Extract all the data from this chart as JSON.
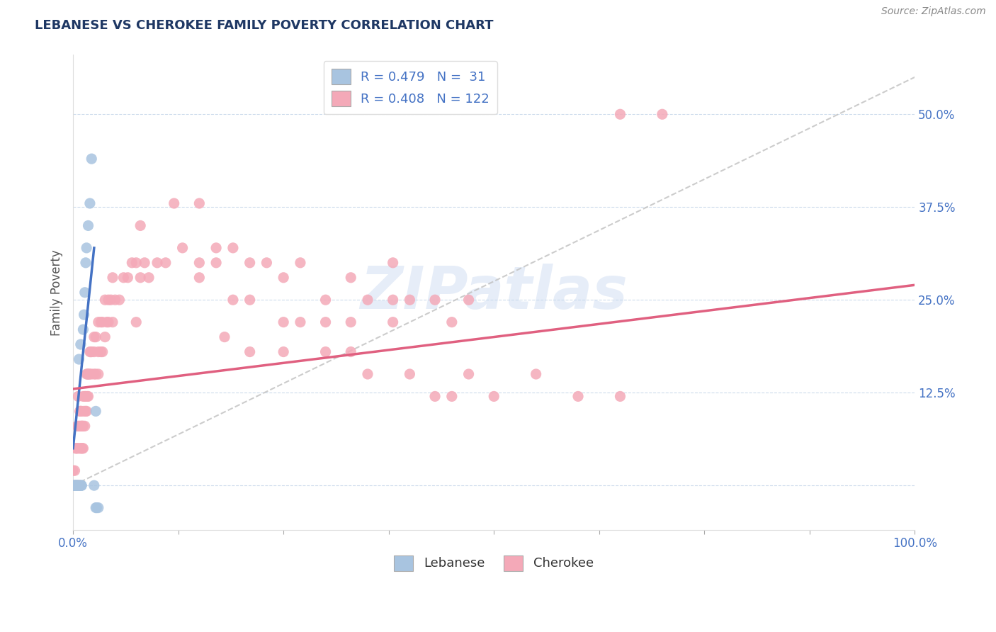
{
  "title": "LEBANESE VS CHEROKEE FAMILY POVERTY CORRELATION CHART",
  "source": "Source: ZipAtlas.com",
  "ylabel": "Family Poverty",
  "xlim": [
    0,
    1.0
  ],
  "ylim": [
    -0.06,
    0.58
  ],
  "xticks": [
    0.0,
    0.125,
    0.25,
    0.375,
    0.5,
    0.625,
    0.75,
    0.875,
    1.0
  ],
  "ytick_positions": [
    0.0,
    0.125,
    0.25,
    0.375,
    0.5
  ],
  "yticklabels": [
    "",
    "12.5%",
    "25.0%",
    "37.5%",
    "50.0%"
  ],
  "lebanese_R": 0.479,
  "lebanese_N": 31,
  "cherokee_R": 0.408,
  "cherokee_N": 122,
  "lebanese_color": "#a8c4e0",
  "cherokee_color": "#f4a9b8",
  "lebanese_line_color": "#4472c4",
  "cherokee_line_color": "#e06080",
  "diagonal_color": "#c0c0c0",
  "watermark": "ZIPatlas",
  "title_color": "#1f3864",
  "axis_label_color": "#555555",
  "tick_label_color": "#4472c4",
  "lebanese_scatter": [
    [
      0.0,
      0.0
    ],
    [
      0.0,
      0.0
    ],
    [
      0.002,
      0.0
    ],
    [
      0.002,
      0.0
    ],
    [
      0.003,
      0.0
    ],
    [
      0.003,
      0.0
    ],
    [
      0.004,
      0.0
    ],
    [
      0.004,
      0.0
    ],
    [
      0.005,
      0.0
    ],
    [
      0.005,
      0.0
    ],
    [
      0.006,
      0.0
    ],
    [
      0.007,
      0.0
    ],
    [
      0.007,
      0.17
    ],
    [
      0.008,
      0.0
    ],
    [
      0.009,
      0.19
    ],
    [
      0.01,
      0.0
    ],
    [
      0.01,
      0.0
    ],
    [
      0.01,
      0.0
    ],
    [
      0.012,
      0.21
    ],
    [
      0.013,
      0.23
    ],
    [
      0.014,
      0.26
    ],
    [
      0.015,
      0.3
    ],
    [
      0.016,
      0.32
    ],
    [
      0.018,
      0.35
    ],
    [
      0.02,
      0.38
    ],
    [
      0.022,
      0.44
    ],
    [
      0.025,
      0.0
    ],
    [
      0.027,
      0.1
    ],
    [
      0.027,
      -0.03
    ],
    [
      0.028,
      -0.03
    ],
    [
      0.03,
      -0.03
    ]
  ],
  "cherokee_scatter": [
    [
      0.0,
      0.0
    ],
    [
      0.0,
      0.02
    ],
    [
      0.002,
      0.02
    ],
    [
      0.003,
      0.05
    ],
    [
      0.003,
      0.0
    ],
    [
      0.004,
      0.0
    ],
    [
      0.004,
      0.05
    ],
    [
      0.005,
      0.0
    ],
    [
      0.005,
      0.05
    ],
    [
      0.005,
      0.08
    ],
    [
      0.006,
      0.12
    ],
    [
      0.006,
      0.0
    ],
    [
      0.007,
      0.0
    ],
    [
      0.007,
      0.05
    ],
    [
      0.007,
      0.08
    ],
    [
      0.008,
      0.1
    ],
    [
      0.008,
      0.0
    ],
    [
      0.009,
      0.05
    ],
    [
      0.009,
      0.08
    ],
    [
      0.009,
      0.1
    ],
    [
      0.01,
      0.05
    ],
    [
      0.01,
      0.08
    ],
    [
      0.01,
      0.1
    ],
    [
      0.011,
      0.05
    ],
    [
      0.011,
      0.08
    ],
    [
      0.012,
      0.05
    ],
    [
      0.012,
      0.08
    ],
    [
      0.012,
      0.12
    ],
    [
      0.013,
      0.1
    ],
    [
      0.014,
      0.08
    ],
    [
      0.014,
      0.12
    ],
    [
      0.015,
      0.1
    ],
    [
      0.015,
      0.12
    ],
    [
      0.016,
      0.1
    ],
    [
      0.016,
      0.15
    ],
    [
      0.017,
      0.12
    ],
    [
      0.017,
      0.15
    ],
    [
      0.018,
      0.12
    ],
    [
      0.018,
      0.15
    ],
    [
      0.019,
      0.15
    ],
    [
      0.02,
      0.15
    ],
    [
      0.02,
      0.18
    ],
    [
      0.021,
      0.18
    ],
    [
      0.022,
      0.15
    ],
    [
      0.022,
      0.18
    ],
    [
      0.025,
      0.15
    ],
    [
      0.025,
      0.18
    ],
    [
      0.025,
      0.2
    ],
    [
      0.027,
      0.15
    ],
    [
      0.027,
      0.2
    ],
    [
      0.03,
      0.15
    ],
    [
      0.03,
      0.18
    ],
    [
      0.03,
      0.22
    ],
    [
      0.033,
      0.18
    ],
    [
      0.033,
      0.22
    ],
    [
      0.035,
      0.18
    ],
    [
      0.035,
      0.22
    ],
    [
      0.038,
      0.2
    ],
    [
      0.038,
      0.25
    ],
    [
      0.04,
      0.22
    ],
    [
      0.042,
      0.22
    ],
    [
      0.042,
      0.25
    ],
    [
      0.045,
      0.25
    ],
    [
      0.047,
      0.22
    ],
    [
      0.047,
      0.28
    ],
    [
      0.05,
      0.25
    ],
    [
      0.055,
      0.25
    ],
    [
      0.06,
      0.28
    ],
    [
      0.065,
      0.28
    ],
    [
      0.07,
      0.3
    ],
    [
      0.075,
      0.22
    ],
    [
      0.075,
      0.3
    ],
    [
      0.08,
      0.28
    ],
    [
      0.085,
      0.3
    ],
    [
      0.09,
      0.28
    ],
    [
      0.1,
      0.3
    ],
    [
      0.11,
      0.3
    ],
    [
      0.13,
      0.32
    ],
    [
      0.15,
      0.28
    ],
    [
      0.17,
      0.3
    ],
    [
      0.19,
      0.25
    ],
    [
      0.21,
      0.25
    ],
    [
      0.23,
      0.3
    ],
    [
      0.25,
      0.28
    ],
    [
      0.27,
      0.3
    ],
    [
      0.3,
      0.25
    ],
    [
      0.33,
      0.28
    ],
    [
      0.35,
      0.25
    ],
    [
      0.38,
      0.3
    ],
    [
      0.4,
      0.25
    ],
    [
      0.43,
      0.25
    ],
    [
      0.45,
      0.22
    ],
    [
      0.47,
      0.25
    ],
    [
      0.15,
      0.38
    ],
    [
      0.19,
      0.32
    ],
    [
      0.25,
      0.22
    ],
    [
      0.3,
      0.22
    ],
    [
      0.33,
      0.22
    ],
    [
      0.35,
      0.15
    ],
    [
      0.38,
      0.22
    ],
    [
      0.4,
      0.15
    ],
    [
      0.43,
      0.12
    ],
    [
      0.45,
      0.12
    ],
    [
      0.47,
      0.15
    ],
    [
      0.5,
      0.12
    ],
    [
      0.55,
      0.15
    ],
    [
      0.6,
      0.12
    ],
    [
      0.65,
      0.12
    ],
    [
      0.12,
      0.38
    ],
    [
      0.15,
      0.3
    ],
    [
      0.17,
      0.32
    ],
    [
      0.21,
      0.3
    ],
    [
      0.27,
      0.22
    ],
    [
      0.33,
      0.18
    ],
    [
      0.38,
      0.25
    ],
    [
      0.65,
      0.5
    ],
    [
      0.7,
      0.5
    ],
    [
      0.18,
      0.2
    ],
    [
      0.21,
      0.18
    ],
    [
      0.25,
      0.18
    ],
    [
      0.3,
      0.18
    ],
    [
      0.08,
      0.35
    ]
  ]
}
